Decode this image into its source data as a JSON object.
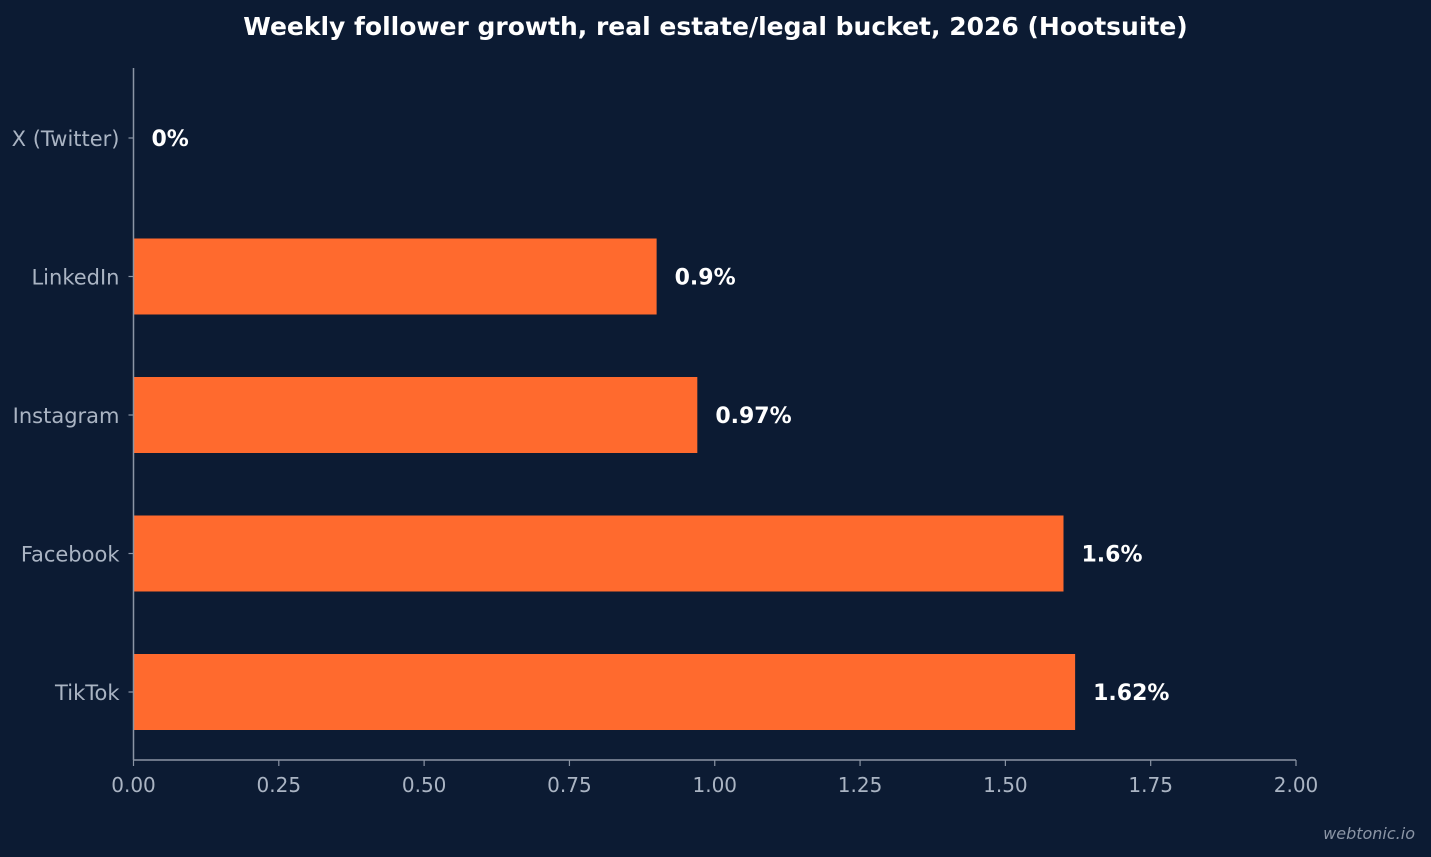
{
  "colors": {
    "background": "#0c1b33",
    "bar": "#ff6a2e",
    "axis": "#8b95a5",
    "tick_label": "#aab4c3",
    "category_label": "#aab4c3",
    "value_label": "#ffffff",
    "title": "#ffffff"
  },
  "watermark": "webtonic.io",
  "chart_data": {
    "type": "bar",
    "orientation": "horizontal",
    "title": "Weekly follower growth, real estate/legal bucket, 2026 (Hootsuite)",
    "xlabel": "",
    "ylabel": "",
    "categories": [
      "X (Twitter)",
      "LinkedIn",
      "Instagram",
      "Facebook",
      "TikTok"
    ],
    "values": [
      0,
      0.9,
      0.97,
      1.6,
      1.62
    ],
    "value_labels": [
      "0%",
      "0.9%",
      "0.97%",
      "1.6%",
      "1.62%"
    ],
    "xlim": [
      0,
      2
    ],
    "xticks": [
      0,
      0.25,
      0.5,
      0.75,
      1,
      1.25,
      1.5,
      1.75,
      2
    ],
    "xtick_labels": [
      "0.00",
      "0.25",
      "0.50",
      "0.75",
      "1.00",
      "1.25",
      "1.50",
      "1.75",
      "2.00"
    ],
    "grid": false,
    "legend": "none"
  }
}
